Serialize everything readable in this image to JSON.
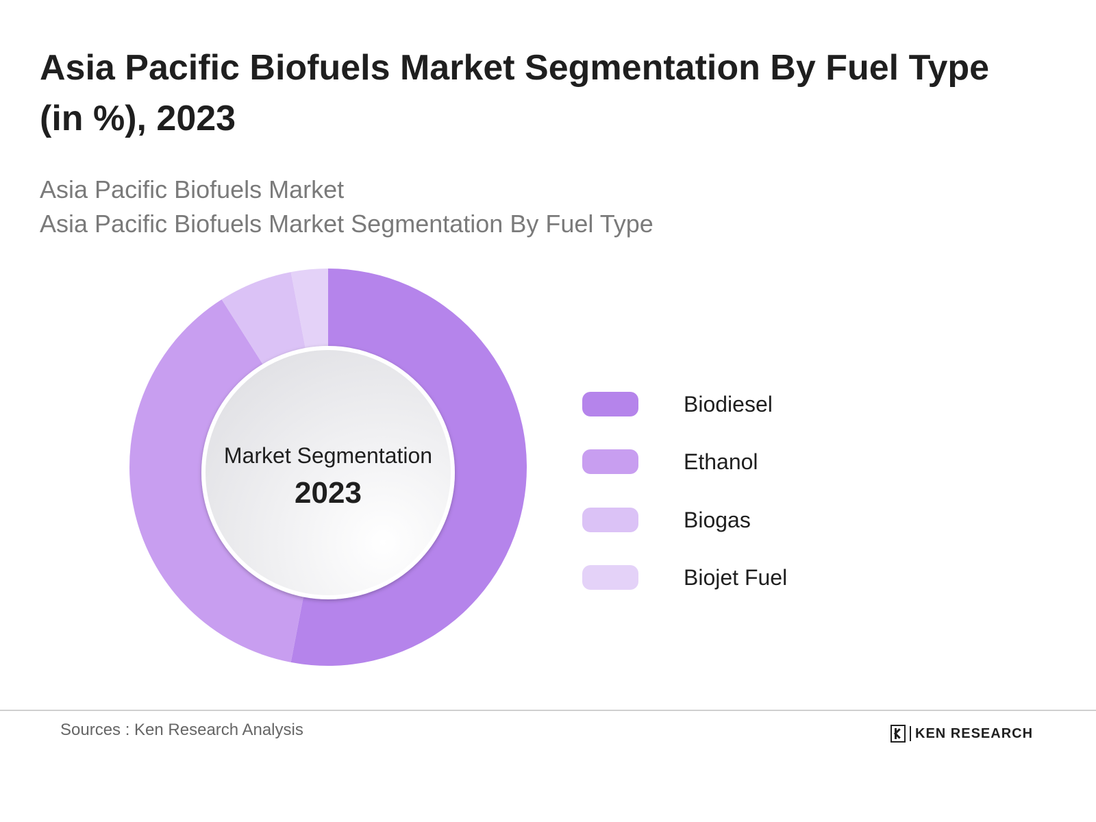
{
  "header": {
    "title": "Asia Pacific Biofuels Market Segmentation By Fuel Type (in %), 2023",
    "subtitle_line1": "Asia Pacific Biofuels Market",
    "subtitle_line2": "Asia Pacific Biofuels Market Segmentation By Fuel Type"
  },
  "chart_data": {
    "type": "pie",
    "variant": "donut",
    "center_label": "Market Segmentation",
    "center_year": "2023",
    "categories": [
      "Biodiesel",
      "Ethanol",
      "Biogas",
      "Biojet Fuel"
    ],
    "values": [
      53,
      38,
      6,
      3
    ],
    "colors": [
      "#b584eb",
      "#c89ef0",
      "#dbc2f6",
      "#e4d2f8"
    ],
    "legend_position": "right"
  },
  "footer": {
    "sources": "Sources : Ken Research Analysis",
    "logo_text": "KEN RESEARCH"
  }
}
